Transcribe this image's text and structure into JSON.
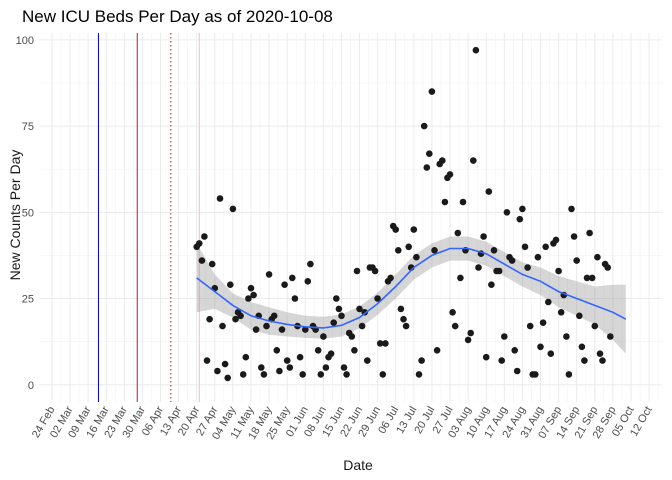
{
  "chart_data": {
    "type": "scatter",
    "title": "New ICU Beds Per Day as of 2020-10-08",
    "xlabel": "Date",
    "ylabel": "New Counts Per Day",
    "ylim": [
      -5,
      102
    ],
    "yticks": [
      0,
      25,
      50,
      75,
      100
    ],
    "xlim": [
      "2020-02-19",
      "2020-10-17"
    ],
    "xticks": [
      "24 Feb",
      "02 Mar",
      "09 Mar",
      "16 Mar",
      "23 Mar",
      "30 Mar",
      "06 Apr",
      "13 Apr",
      "20 Apr",
      "27 Apr",
      "04 May",
      "11 May",
      "18 May",
      "25 May",
      "01 Jun",
      "08 Jun",
      "15 Jun",
      "22 Jun",
      "29 Jun",
      "06 Jul",
      "13 Jul",
      "20 Jul",
      "27 Jul",
      "03 Aug",
      "10 Aug",
      "17 Aug",
      "24 Aug",
      "31 Aug",
      "07 Sep",
      "14 Sep",
      "21 Sep",
      "28 Sep",
      "05 Oct",
      "12 Oct"
    ],
    "xtick_dates": [
      "2020-02-24",
      "2020-03-02",
      "2020-03-09",
      "2020-03-16",
      "2020-03-23",
      "2020-03-30",
      "2020-04-06",
      "2020-04-13",
      "2020-04-20",
      "2020-04-27",
      "2020-05-04",
      "2020-05-11",
      "2020-05-18",
      "2020-05-25",
      "2020-06-01",
      "2020-06-08",
      "2020-06-15",
      "2020-06-22",
      "2020-06-29",
      "2020-07-06",
      "2020-07-13",
      "2020-07-20",
      "2020-07-27",
      "2020-08-03",
      "2020-08-10",
      "2020-08-17",
      "2020-08-24",
      "2020-08-31",
      "2020-09-07",
      "2020-09-14",
      "2020-09-21",
      "2020-09-28",
      "2020-10-05",
      "2020-10-12"
    ],
    "grid": true,
    "vlines": [
      {
        "date": "2020-03-13",
        "color": "#0000cd",
        "style": "solid"
      },
      {
        "date": "2020-03-28",
        "color": "#c0142c",
        "style": "solid"
      },
      {
        "date": "2020-04-10",
        "color": "#c0142c",
        "style": "dotted"
      },
      {
        "date": "2020-04-21",
        "color": "#ffb6c1",
        "style": "solid"
      }
    ],
    "points": [
      [
        "2020-04-20",
        40
      ],
      [
        "2020-04-21",
        41
      ],
      [
        "2020-04-22",
        36
      ],
      [
        "2020-04-23",
        43
      ],
      [
        "2020-04-24",
        7
      ],
      [
        "2020-04-25",
        19
      ],
      [
        "2020-04-26",
        35
      ],
      [
        "2020-04-27",
        28
      ],
      [
        "2020-04-28",
        4
      ],
      [
        "2020-04-29",
        54
      ],
      [
        "2020-04-30",
        17
      ],
      [
        "2020-05-01",
        6
      ],
      [
        "2020-05-02",
        2
      ],
      [
        "2020-05-03",
        29
      ],
      [
        "2020-05-04",
        51
      ],
      [
        "2020-05-05",
        19
      ],
      [
        "2020-05-06",
        21
      ],
      [
        "2020-05-07",
        20
      ],
      [
        "2020-05-08",
        3
      ],
      [
        "2020-05-09",
        8
      ],
      [
        "2020-05-10",
        25
      ],
      [
        "2020-05-11",
        28
      ],
      [
        "2020-05-12",
        26
      ],
      [
        "2020-05-13",
        16
      ],
      [
        "2020-05-14",
        20
      ],
      [
        "2020-05-15",
        5
      ],
      [
        "2020-05-16",
        3
      ],
      [
        "2020-05-17",
        17
      ],
      [
        "2020-05-18",
        32
      ],
      [
        "2020-05-19",
        19
      ],
      [
        "2020-05-20",
        20
      ],
      [
        "2020-05-21",
        10
      ],
      [
        "2020-05-22",
        4
      ],
      [
        "2020-05-23",
        16
      ],
      [
        "2020-05-24",
        29
      ],
      [
        "2020-05-25",
        7
      ],
      [
        "2020-05-26",
        5
      ],
      [
        "2020-05-27",
        31
      ],
      [
        "2020-05-28",
        25
      ],
      [
        "2020-05-29",
        17
      ],
      [
        "2020-05-30",
        8
      ],
      [
        "2020-05-31",
        3
      ],
      [
        "2020-06-01",
        16
      ],
      [
        "2020-06-02",
        30
      ],
      [
        "2020-06-03",
        35
      ],
      [
        "2020-06-04",
        17
      ],
      [
        "2020-06-05",
        16
      ],
      [
        "2020-06-06",
        10
      ],
      [
        "2020-06-07",
        3
      ],
      [
        "2020-06-08",
        14
      ],
      [
        "2020-06-09",
        5
      ],
      [
        "2020-06-10",
        8
      ],
      [
        "2020-06-11",
        9
      ],
      [
        "2020-06-12",
        18
      ],
      [
        "2020-06-13",
        25
      ],
      [
        "2020-06-14",
        22
      ],
      [
        "2020-06-15",
        20
      ],
      [
        "2020-06-16",
        5
      ],
      [
        "2020-06-17",
        3
      ],
      [
        "2020-06-18",
        15
      ],
      [
        "2020-06-19",
        14
      ],
      [
        "2020-06-20",
        10
      ],
      [
        "2020-06-21",
        33
      ],
      [
        "2020-06-22",
        22
      ],
      [
        "2020-06-23",
        17
      ],
      [
        "2020-06-24",
        21
      ],
      [
        "2020-06-25",
        7
      ],
      [
        "2020-06-26",
        34
      ],
      [
        "2020-06-27",
        34
      ],
      [
        "2020-06-28",
        33
      ],
      [
        "2020-06-29",
        25
      ],
      [
        "2020-06-30",
        12
      ],
      [
        "2020-07-01",
        3
      ],
      [
        "2020-07-02",
        12
      ],
      [
        "2020-07-03",
        30
      ],
      [
        "2020-07-04",
        31
      ],
      [
        "2020-07-05",
        46
      ],
      [
        "2020-07-06",
        45
      ],
      [
        "2020-07-07",
        39
      ],
      [
        "2020-07-08",
        22
      ],
      [
        "2020-07-09",
        19
      ],
      [
        "2020-07-10",
        17
      ],
      [
        "2020-07-11",
        40
      ],
      [
        "2020-07-12",
        34
      ],
      [
        "2020-07-13",
        45
      ],
      [
        "2020-07-14",
        37
      ],
      [
        "2020-07-15",
        3
      ],
      [
        "2020-07-16",
        7
      ],
      [
        "2020-07-17",
        75
      ],
      [
        "2020-07-18",
        63
      ],
      [
        "2020-07-19",
        67
      ],
      [
        "2020-07-20",
        85
      ],
      [
        "2020-07-21",
        39
      ],
      [
        "2020-07-22",
        10
      ],
      [
        "2020-07-23",
        64
      ],
      [
        "2020-07-24",
        65
      ],
      [
        "2020-07-25",
        53
      ],
      [
        "2020-07-26",
        60
      ],
      [
        "2020-07-27",
        61
      ],
      [
        "2020-07-28",
        21
      ],
      [
        "2020-07-29",
        17
      ],
      [
        "2020-07-30",
        44
      ],
      [
        "2020-07-31",
        31
      ],
      [
        "2020-08-01",
        53
      ],
      [
        "2020-08-02",
        39
      ],
      [
        "2020-08-03",
        13
      ],
      [
        "2020-08-04",
        15
      ],
      [
        "2020-08-05",
        65
      ],
      [
        "2020-08-06",
        97
      ],
      [
        "2020-08-07",
        34
      ],
      [
        "2020-08-08",
        38
      ],
      [
        "2020-08-09",
        43
      ],
      [
        "2020-08-10",
        8
      ],
      [
        "2020-08-11",
        56
      ],
      [
        "2020-08-12",
        29
      ],
      [
        "2020-08-13",
        39
      ],
      [
        "2020-08-14",
        33
      ],
      [
        "2020-08-15",
        33
      ],
      [
        "2020-08-16",
        7
      ],
      [
        "2020-08-17",
        14
      ],
      [
        "2020-08-18",
        50
      ],
      [
        "2020-08-19",
        37
      ],
      [
        "2020-08-20",
        36
      ],
      [
        "2020-08-21",
        10
      ],
      [
        "2020-08-22",
        4
      ],
      [
        "2020-08-23",
        48
      ],
      [
        "2020-08-24",
        51
      ],
      [
        "2020-08-25",
        40
      ],
      [
        "2020-08-26",
        34
      ],
      [
        "2020-08-27",
        17
      ],
      [
        "2020-08-28",
        3
      ],
      [
        "2020-08-29",
        3
      ],
      [
        "2020-08-30",
        37
      ],
      [
        "2020-08-31",
        11
      ],
      [
        "2020-09-01",
        18
      ],
      [
        "2020-09-02",
        40
      ],
      [
        "2020-09-03",
        24
      ],
      [
        "2020-09-04",
        9
      ],
      [
        "2020-09-05",
        41
      ],
      [
        "2020-09-06",
        42
      ],
      [
        "2020-09-07",
        33
      ],
      [
        "2020-09-08",
        21
      ],
      [
        "2020-09-09",
        26
      ],
      [
        "2020-09-10",
        14
      ],
      [
        "2020-09-11",
        3
      ],
      [
        "2020-09-12",
        51
      ],
      [
        "2020-09-13",
        43
      ],
      [
        "2020-09-14",
        36
      ],
      [
        "2020-09-15",
        20
      ],
      [
        "2020-09-16",
        11
      ],
      [
        "2020-09-17",
        7
      ],
      [
        "2020-09-18",
        31
      ],
      [
        "2020-09-19",
        44
      ],
      [
        "2020-09-20",
        31
      ],
      [
        "2020-09-21",
        17
      ],
      [
        "2020-09-22",
        37
      ],
      [
        "2020-09-23",
        9
      ],
      [
        "2020-09-24",
        7
      ],
      [
        "2020-09-25",
        35
      ],
      [
        "2020-09-26",
        34
      ],
      [
        "2020-09-27",
        14
      ]
    ],
    "smooth": {
      "method": "loess",
      "color": "#3366ff",
      "band_color": "#999999",
      "x": [
        "2020-04-20",
        "2020-04-27",
        "2020-05-04",
        "2020-05-11",
        "2020-05-18",
        "2020-05-25",
        "2020-06-01",
        "2020-06-08",
        "2020-06-15",
        "2020-06-22",
        "2020-06-29",
        "2020-07-06",
        "2020-07-13",
        "2020-07-20",
        "2020-07-27",
        "2020-08-03",
        "2020-08-10",
        "2020-08-17",
        "2020-08-24",
        "2020-08-31",
        "2020-09-07",
        "2020-09-14",
        "2020-09-21",
        "2020-09-28",
        "2020-10-03"
      ],
      "y": [
        31,
        27,
        23,
        20,
        18.5,
        17.5,
        16.8,
        16.5,
        17.2,
        19.5,
        23.5,
        28.5,
        34,
        37.5,
        39.5,
        39.5,
        38,
        35,
        32,
        30,
        27,
        25,
        23,
        21,
        19
      ],
      "lower": [
        21,
        22,
        19.5,
        16,
        14.5,
        14,
        13.6,
        13.3,
        14,
        16.3,
        20.3,
        25,
        30.5,
        34,
        36,
        36,
        34.5,
        31.5,
        28.5,
        26,
        22.5,
        20,
        17.5,
        13,
        9
      ],
      "upper": [
        41,
        32,
        26.5,
        24,
        22.5,
        21,
        20,
        19.7,
        20.4,
        22.7,
        26.7,
        32,
        37.5,
        41,
        43,
        43,
        41.5,
        38.5,
        35.5,
        34,
        31.5,
        30,
        28.5,
        29,
        29
      ]
    }
  }
}
